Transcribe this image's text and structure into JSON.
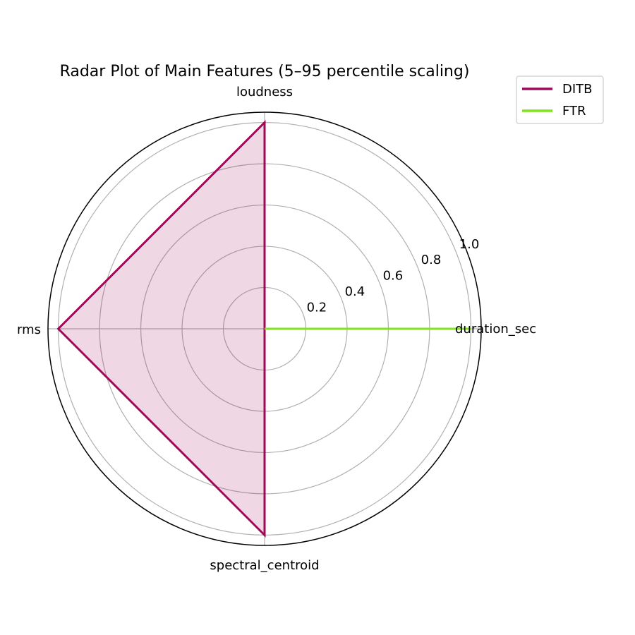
{
  "chart_data": {
    "type": "radar",
    "title": "Radar Plot of Main Features (5–95 percentile scaling)",
    "axes": [
      "duration_sec",
      "loudness",
      "rms",
      "spectral_centroid"
    ],
    "rlim": [
      0,
      1.05
    ],
    "rticks": [
      0.2,
      0.4,
      0.6,
      0.8,
      1.0
    ],
    "rtick_labels": [
      "0.2",
      "0.4",
      "0.6",
      "0.8",
      "1.0"
    ],
    "grid": true,
    "legend_position": "top-right",
    "series": [
      {
        "name": "DITB",
        "color": "#a0085a",
        "values": [
          0,
          1.0,
          1.0,
          1.0
        ],
        "filled": true
      },
      {
        "name": "FTR",
        "color": "#7fe31e",
        "values": [
          1.0,
          0,
          0,
          0
        ],
        "filled": false
      }
    ]
  }
}
